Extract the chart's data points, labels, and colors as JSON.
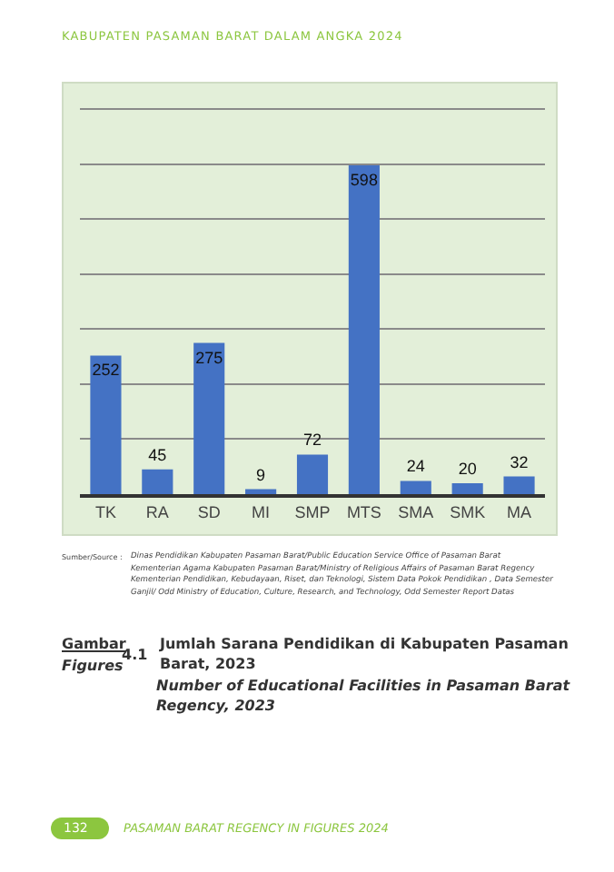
{
  "chart_data": {
    "type": "bar",
    "title": "Jumlah Sarana Pendidikan di Kabupaten Pasaman Barat, 2023",
    "subtitle": "Number of Educational Facilities in Pasaman Barat Regency, 2023",
    "annotations": [
      "KABUPATEN PASAMAN BARAT DALAM ANGKA 2024",
      "Sumber/Source :",
      "Dinas Pendidikan Kabupaten Pasaman Barat/Public Education Service Office of Pasaman Barat",
      "Kementerian Agama Kabupaten Pasaman Barat/Ministry of Religious Affairs of Pasaman Barat Regency",
      "Kementerian Pendidikan, Kebudayaan, Riset, dan Teknologi, Sistem Data Pokok Pendidikan , Data Semester Ganjil/ Odd Ministry of Education, Culture, Research, and Technology, Odd Semester Report Datas",
      "Gambar",
      "Figures",
      "4.1",
      "132",
      "PASAMAN BARAT REGENCY IN FIGURES 2024"
    ],
    "categories": [
      "TK",
      "RA",
      "SD",
      "MI",
      "SMP",
      "MTS",
      "SMA",
      "SMK",
      "MA"
    ],
    "values": [
      252,
      45,
      275,
      9,
      72,
      598,
      24,
      20,
      32
    ],
    "color": "#4472c4",
    "ylim": [
      0,
      740
    ],
    "yticks": [
      {
        "value": 0,
        "label": null
      },
      {
        "value": 100,
        "label": null
      },
      {
        "value": 200,
        "label": null
      },
      {
        "value": 300,
        "label": null
      },
      {
        "value": 400,
        "label": null
      },
      {
        "value": 500,
        "label": null
      },
      {
        "value": 600,
        "label": null
      },
      {
        "value": 700,
        "label": null
      }
    ],
    "tick_labels": "x",
    "grid": "y",
    "data_labels": true
  }
}
